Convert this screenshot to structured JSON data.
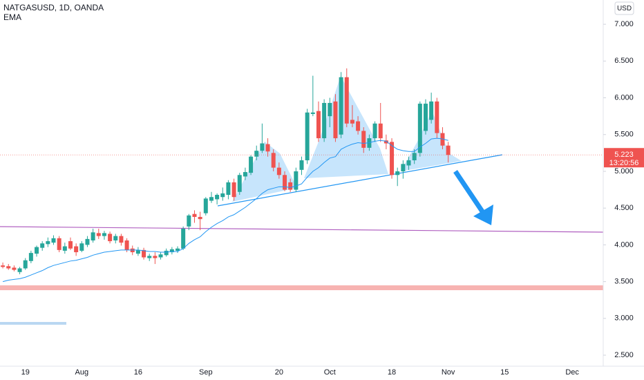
{
  "chart_data": {
    "type": "candlestick",
    "title": "NATGASUSD, 1D, OANDA",
    "indicator": "EMA",
    "currency": "USD",
    "last_price": 5.223,
    "countdown": "13:20:56",
    "categories": [
      null,
      null,
      null,
      null,
      "19",
      null,
      null,
      null,
      null,
      null,
      null,
      null,
      null,
      null,
      "Aug",
      null,
      null,
      null,
      null,
      null,
      null,
      null,
      null,
      null,
      "16",
      null,
      null,
      null,
      null,
      null,
      null,
      null,
      null,
      null,
      null,
      null,
      "Sep",
      null,
      null,
      null,
      null,
      null,
      null,
      null,
      null,
      null,
      null,
      null,
      null,
      "20",
      null,
      null,
      null,
      null,
      null,
      null,
      null,
      null,
      "Oct",
      null,
      null,
      null,
      null,
      null,
      null,
      null,
      null,
      null,
      null,
      "18",
      null,
      null,
      null,
      null,
      null,
      null,
      null,
      null,
      null,
      "Nov",
      null,
      null,
      null,
      null,
      null,
      null,
      null,
      null,
      null,
      "15",
      null,
      null,
      null,
      null,
      null,
      null,
      null,
      null,
      null,
      null,
      null,
      "Dec",
      null,
      null,
      null,
      null,
      null
    ],
    "open": [
      3.72,
      3.71,
      3.69,
      3.63,
      3.68,
      3.78,
      3.88,
      3.96,
      4.01,
      4.03,
      4.09,
      3.92,
      4.05,
      3.98,
      3.92,
      4.0,
      4.06,
      4.16,
      4.12,
      4.15,
      4.06,
      4.12,
      4.06,
      3.95,
      3.88,
      3.93,
      3.82,
      3.85,
      3.83,
      3.86,
      3.9,
      3.92,
      3.95,
      4.25,
      4.42,
      4.38,
      4.43,
      4.6,
      4.62,
      4.65,
      4.68,
      4.85,
      4.72,
      4.93,
      4.98,
      5.2,
      5.28,
      5.37,
      5.25,
      5.05,
      4.95,
      4.85,
      4.75,
      5.02,
      5.15,
      5.78,
      5.82,
      5.45,
      5.75,
      5.95,
      5.5,
      6.28,
      5.7,
      5.68,
      5.55,
      5.32,
      5.45,
      5.65,
      5.42,
      5.4,
      4.95,
      5.0,
      5.08,
      5.15,
      5.25,
      5.55,
      5.7,
      5.95,
      5.52,
      5.35,
      null,
      null,
      null,
      null,
      null,
      null,
      null,
      null,
      null,
      null,
      null,
      null,
      null,
      null,
      null,
      null,
      null,
      null,
      null,
      null,
      null,
      null,
      null,
      null,
      null,
      null,
      null
    ],
    "high": [
      3.76,
      3.74,
      3.72,
      3.7,
      3.82,
      3.92,
      3.99,
      4.05,
      4.1,
      4.13,
      4.12,
      4.03,
      4.1,
      4.02,
      4.05,
      4.12,
      4.22,
      4.22,
      4.19,
      4.18,
      4.15,
      4.15,
      4.09,
      3.99,
      3.97,
      3.96,
      3.88,
      3.9,
      3.9,
      3.95,
      3.97,
      3.98,
      4.25,
      4.42,
      4.47,
      4.45,
      4.65,
      4.72,
      4.7,
      4.78,
      4.88,
      4.9,
      4.98,
      5.05,
      5.22,
      5.35,
      5.65,
      5.45,
      5.3,
      5.12,
      5.0,
      4.9,
      5.05,
      5.2,
      5.85,
      6.3,
      5.95,
      5.98,
      6.0,
      6.05,
      6.35,
      6.4,
      5.9,
      5.75,
      5.6,
      5.5,
      5.68,
      5.93,
      5.5,
      5.45,
      5.05,
      5.15,
      5.2,
      5.3,
      5.95,
      5.98,
      6.07,
      6.0,
      5.6,
      5.4,
      null,
      null,
      null,
      null,
      null,
      null,
      null,
      null,
      null,
      null,
      null,
      null,
      null,
      null,
      null,
      null,
      null,
      null,
      null,
      null,
      null,
      null,
      null,
      null,
      null,
      null,
      null
    ],
    "low": [
      3.68,
      3.66,
      3.64,
      3.6,
      3.66,
      3.75,
      3.84,
      3.92,
      3.97,
      4.0,
      3.9,
      3.88,
      3.93,
      3.85,
      3.9,
      3.97,
      4.03,
      4.08,
      4.07,
      4.02,
      4.02,
      3.99,
      3.9,
      3.86,
      3.85,
      3.8,
      3.78,
      3.74,
      3.8,
      3.84,
      3.87,
      3.89,
      3.93,
      4.2,
      4.3,
      4.2,
      4.4,
      4.57,
      4.55,
      4.6,
      4.62,
      4.6,
      4.68,
      4.88,
      4.95,
      5.15,
      5.25,
      5.2,
      5.0,
      4.9,
      4.73,
      4.72,
      4.72,
      4.95,
      5.1,
      5.75,
      5.4,
      5.4,
      5.6,
      5.4,
      5.45,
      5.6,
      5.6,
      5.5,
      5.25,
      5.28,
      5.4,
      5.4,
      5.3,
      4.9,
      4.8,
      4.9,
      5.02,
      5.1,
      5.2,
      5.5,
      5.65,
      5.45,
      5.3,
      5.12,
      null,
      null,
      null,
      null,
      null,
      null,
      null,
      null,
      null,
      null,
      null,
      null,
      null,
      null,
      null,
      null,
      null,
      null,
      null,
      null,
      null,
      null,
      null,
      null,
      null,
      null,
      null
    ],
    "close": [
      3.7,
      3.68,
      3.66,
      3.68,
      3.79,
      3.89,
      3.97,
      4.02,
      4.05,
      4.09,
      3.93,
      3.98,
      3.95,
      3.9,
      4.02,
      4.08,
      4.17,
      4.12,
      4.16,
      4.05,
      4.12,
      4.03,
      3.93,
      3.9,
      3.93,
      3.83,
      3.85,
      3.82,
      3.87,
      3.92,
      3.94,
      3.95,
      4.22,
      4.4,
      4.38,
      4.35,
      4.63,
      4.65,
      4.68,
      4.7,
      4.85,
      4.65,
      4.95,
      4.99,
      5.2,
      5.28,
      5.38,
      5.27,
      5.05,
      4.95,
      4.75,
      4.75,
      5.0,
      5.15,
      5.8,
      5.8,
      5.45,
      5.93,
      5.93,
      5.45,
      6.28,
      5.65,
      5.65,
      5.55,
      5.32,
      5.45,
      5.65,
      5.45,
      5.38,
      4.95,
      5.0,
      5.1,
      5.15,
      5.25,
      5.92,
      5.92,
      5.95,
      5.52,
      5.35,
      5.223,
      null,
      null,
      null,
      null,
      null,
      null,
      null,
      null,
      null,
      null,
      null,
      null,
      null,
      null,
      null,
      null,
      null,
      null,
      null,
      null,
      null,
      null,
      null,
      null,
      null,
      null,
      null
    ],
    "ema": [
      3.5,
      3.52,
      3.53,
      3.54,
      3.56,
      3.59,
      3.62,
      3.65,
      3.69,
      3.72,
      3.74,
      3.76,
      3.78,
      3.79,
      3.81,
      3.83,
      3.86,
      3.88,
      3.9,
      3.91,
      3.92,
      3.93,
      3.93,
      3.93,
      3.93,
      3.92,
      3.91,
      3.91,
      3.9,
      3.9,
      3.91,
      3.91,
      3.95,
      4.02,
      4.07,
      4.11,
      4.18,
      4.24,
      4.29,
      4.33,
      4.38,
      4.41,
      4.46,
      4.51,
      4.57,
      4.63,
      4.7,
      4.75,
      4.77,
      4.79,
      4.79,
      4.78,
      4.8,
      4.83,
      4.92,
      5.0,
      5.05,
      5.12,
      5.18,
      5.2,
      5.3,
      5.34,
      5.37,
      5.39,
      5.38,
      5.39,
      5.41,
      5.42,
      5.41,
      5.35,
      5.3,
      5.28,
      5.27,
      5.27,
      5.33,
      5.38,
      5.44,
      5.45,
      5.44,
      5.42,
      null,
      null,
      null,
      null,
      null,
      null,
      null,
      null,
      null,
      null,
      null,
      null,
      null,
      null,
      null,
      null,
      null,
      null,
      null,
      null,
      null,
      null,
      null,
      null,
      null,
      null,
      null
    ],
    "up_color": "#26a69a",
    "down_color": "#ef5350",
    "ema_color": "#2196f3",
    "ylim": [
      2.35,
      7.33
    ],
    "yticks": [
      {
        "value": 2.5,
        "label": "2.500"
      },
      {
        "value": 3,
        "label": "3.000"
      },
      {
        "value": 3.5,
        "label": "3.500"
      },
      {
        "value": 4,
        "label": "4.000"
      },
      {
        "value": 4.5,
        "label": "4.500"
      },
      {
        "value": 5,
        "label": "5.000"
      },
      {
        "value": 5.5,
        "label": "5.500"
      },
      {
        "value": 6,
        "label": "6.000"
      },
      {
        "value": 6.5,
        "label": "6.500"
      },
      {
        "value": 7,
        "label": "7.000"
      }
    ],
    "grid": false
  }
}
